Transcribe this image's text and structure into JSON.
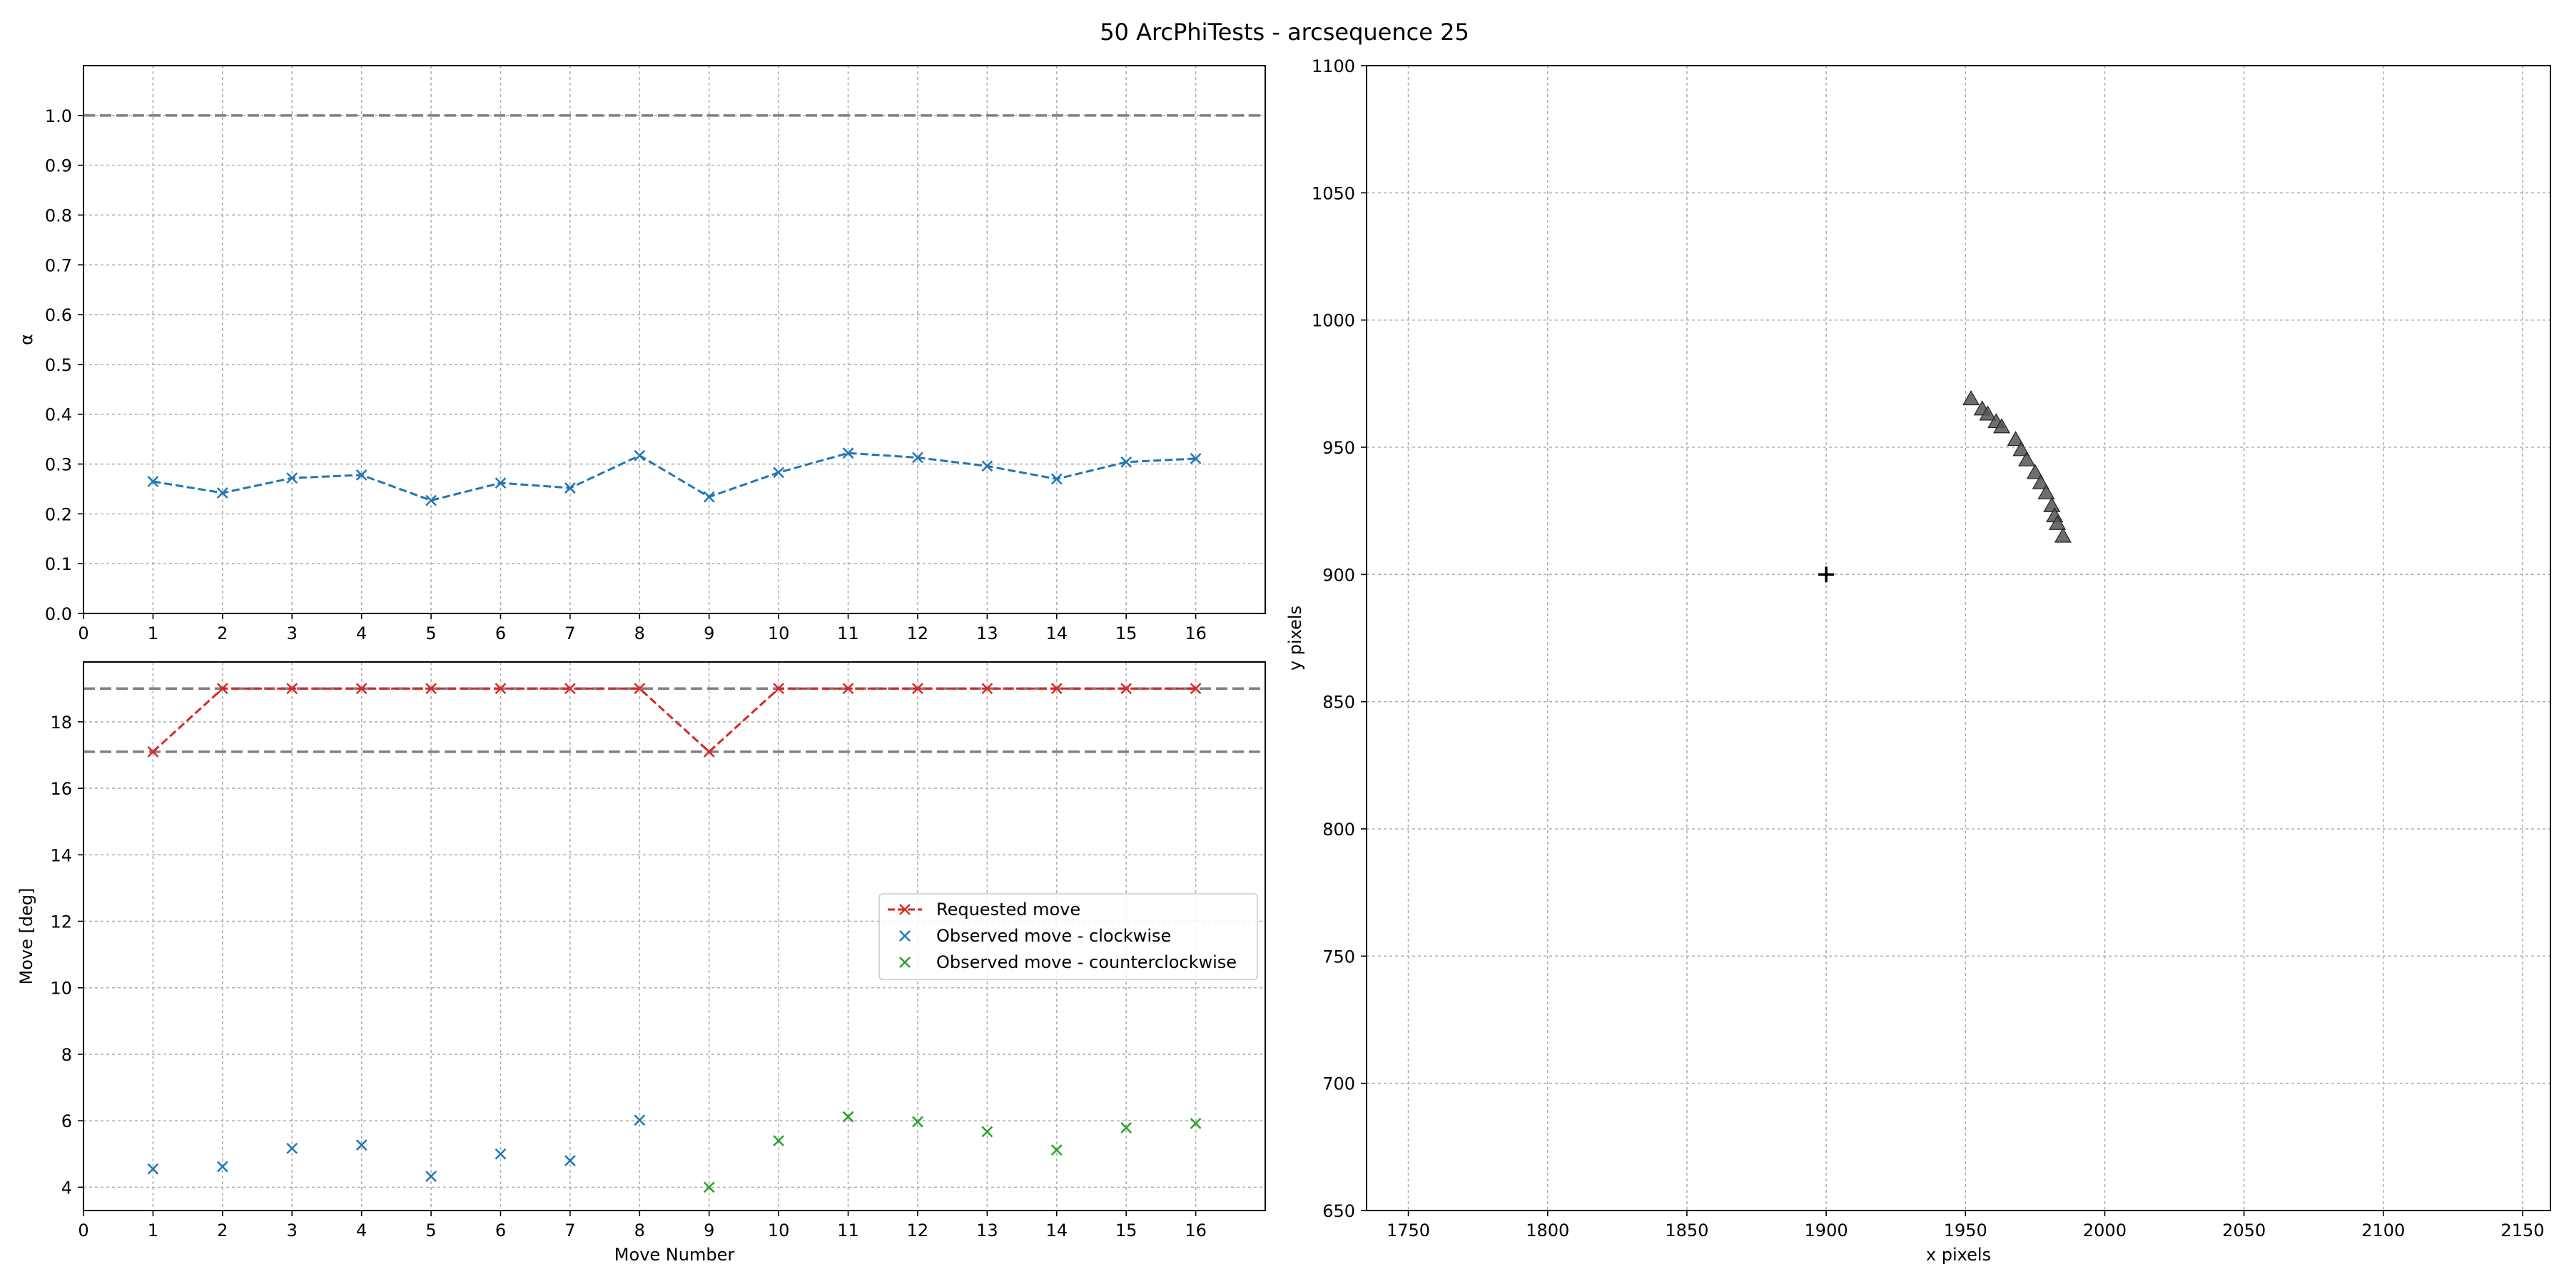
{
  "title": "50 ArcPhiTests - arcsequence 25",
  "chart_data": [
    {
      "type": "line",
      "ylabel": "α",
      "xlim": [
        0,
        17
      ],
      "ylim": [
        0.0,
        1.1
      ],
      "xticks": [
        0,
        1,
        2,
        3,
        4,
        5,
        6,
        7,
        8,
        9,
        10,
        11,
        12,
        13,
        14,
        15,
        16
      ],
      "yticks": [
        0.0,
        0.1,
        0.2,
        0.3,
        0.4,
        0.5,
        0.6,
        0.7,
        0.8,
        0.9,
        1.0
      ],
      "grid": true,
      "hlines": [
        1.0
      ],
      "series": [
        {
          "color": "#1f77b4",
          "marker": "x",
          "linestyle": "dashed",
          "x": [
            1,
            2,
            3,
            4,
            5,
            6,
            7,
            8,
            9,
            10,
            11,
            12,
            13,
            14,
            15,
            16
          ],
          "y": [
            0.265,
            0.242,
            0.272,
            0.278,
            0.227,
            0.262,
            0.252,
            0.317,
            0.234,
            0.283,
            0.322,
            0.313,
            0.296,
            0.27,
            0.304,
            0.311
          ]
        }
      ]
    },
    {
      "type": "line",
      "xlabel": "Move Number",
      "ylabel": "Move [deg]",
      "xlim": [
        0,
        17
      ],
      "ylim": [
        3.3,
        19.8
      ],
      "xticks": [
        0,
        1,
        2,
        3,
        4,
        5,
        6,
        7,
        8,
        9,
        10,
        11,
        12,
        13,
        14,
        15,
        16
      ],
      "yticks": [
        4,
        6,
        8,
        10,
        12,
        14,
        16,
        18
      ],
      "grid": true,
      "hlines": [
        19.0,
        17.1
      ],
      "legend_position": "center-right",
      "series": [
        {
          "name": "Requested move",
          "color": "#d62728",
          "marker": "x",
          "linestyle": "dashed",
          "x": [
            1,
            2,
            3,
            4,
            5,
            6,
            7,
            8,
            9,
            10,
            11,
            12,
            13,
            14,
            15,
            16
          ],
          "y": [
            17.1,
            19.0,
            19.0,
            19.0,
            19.0,
            19.0,
            19.0,
            19.0,
            17.1,
            19.0,
            19.0,
            19.0,
            19.0,
            19.0,
            19.0,
            19.0
          ]
        },
        {
          "name": "Observed move - clockwise",
          "color": "#1f77b4",
          "marker": "x",
          "linestyle": "none",
          "x": [
            1,
            2,
            3,
            4,
            5,
            6,
            7,
            8
          ],
          "y": [
            4.55,
            4.62,
            5.17,
            5.27,
            4.33,
            5.0,
            4.8,
            6.02
          ]
        },
        {
          "name": "Observed move - counterclockwise",
          "color": "#2ca02c",
          "marker": "x",
          "linestyle": "none",
          "x": [
            9,
            10,
            11,
            12,
            13,
            14,
            15,
            16
          ],
          "y": [
            4.0,
            5.4,
            6.12,
            5.97,
            5.67,
            5.12,
            5.79,
            5.92
          ]
        }
      ]
    },
    {
      "type": "scatter",
      "xlabel": "x pixels",
      "ylabel": "y pixels",
      "xlim": [
        1735,
        2160
      ],
      "ylim": [
        650,
        1100
      ],
      "xticks": [
        1750,
        1800,
        1850,
        1900,
        1950,
        2000,
        2050,
        2100,
        2150
      ],
      "yticks": [
        650,
        700,
        750,
        800,
        850,
        900,
        950,
        1000,
        1050,
        1100
      ],
      "grid": true,
      "center": {
        "x": 1900,
        "y": 900,
        "marker": "+",
        "color": "#000000"
      },
      "series": [
        {
          "color": "#555555",
          "marker": "triangle",
          "x": [
            1952,
            1956,
            1958,
            1961,
            1963,
            1968,
            1970,
            1972,
            1975,
            1977,
            1979,
            1981,
            1982,
            1983,
            1985
          ],
          "y": [
            969,
            965,
            963,
            960,
            958,
            953,
            949,
            945,
            940,
            936,
            932,
            927,
            923,
            920,
            915
          ]
        }
      ]
    }
  ]
}
